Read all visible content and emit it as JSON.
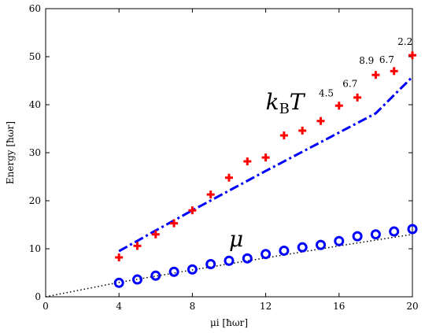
{
  "chart_data": {
    "type": "scatter",
    "title": "",
    "xlabel": "μi [ħωr]",
    "ylabel": "Energy [ħωr]",
    "xlim": [
      0,
      20
    ],
    "ylim": [
      0,
      60
    ],
    "xticks": [
      0,
      4,
      8,
      12,
      16,
      20
    ],
    "yticks": [
      0,
      10,
      20,
      30,
      40,
      50,
      60
    ],
    "grid": false,
    "series": [
      {
        "label_text": "kBT",
        "marker": "plus",
        "color": "#ff0000",
        "x": [
          4,
          5,
          6,
          7,
          8,
          9,
          10,
          11,
          12,
          13,
          14,
          15,
          16,
          17,
          18,
          19,
          20
        ],
        "y": [
          8.2,
          10.6,
          13.0,
          15.3,
          18.0,
          21.3,
          24.8,
          28.2,
          29.0,
          33.6,
          34.6,
          36.6,
          39.8,
          41.5,
          46.2,
          47.0,
          50.3
        ]
      },
      {
        "label_text": "μ",
        "marker": "circle",
        "color": "#0000ff",
        "x": [
          4,
          5,
          6,
          7,
          8,
          9,
          10,
          11,
          12,
          13,
          14,
          15,
          16,
          17,
          18,
          19,
          20
        ],
        "y": [
          2.9,
          3.6,
          4.4,
          5.2,
          5.7,
          6.8,
          7.5,
          8.0,
          8.9,
          9.6,
          10.3,
          10.8,
          11.6,
          12.6,
          13.0,
          13.6,
          14.1
        ]
      }
    ],
    "lines": [
      {
        "style": "dashdot",
        "color": "#0000ff",
        "x": [
          4,
          6,
          8,
          10,
          12,
          14,
          16,
          18,
          20
        ],
        "y": [
          9.5,
          13.8,
          18.0,
          22.1,
          26.2,
          30.2,
          34.2,
          38.2,
          45.8
        ]
      },
      {
        "style": "dotted",
        "color": "#000000",
        "x": [
          0,
          4,
          8,
          12,
          16,
          20
        ],
        "y": [
          0,
          3.0,
          5.6,
          8.1,
          10.6,
          13.0
        ]
      }
    ],
    "annotations": [
      {
        "text": "4.5",
        "x": 15.3,
        "y": 41.7
      },
      {
        "text": "6.7",
        "x": 16.6,
        "y": 43.7
      },
      {
        "text": "8.9",
        "x": 17.5,
        "y": 48.5
      },
      {
        "text": "6.7",
        "x": 18.6,
        "y": 48.7
      },
      {
        "text": "2.2",
        "x": 19.6,
        "y": 52.5
      }
    ],
    "series_labels": [
      {
        "main": "k",
        "sub": "B",
        "tail": "T",
        "x": 12.0,
        "y": 39.0
      },
      {
        "main": "μ",
        "sub": "",
        "tail": "",
        "x": 10.0,
        "y": 10.5
      }
    ]
  }
}
